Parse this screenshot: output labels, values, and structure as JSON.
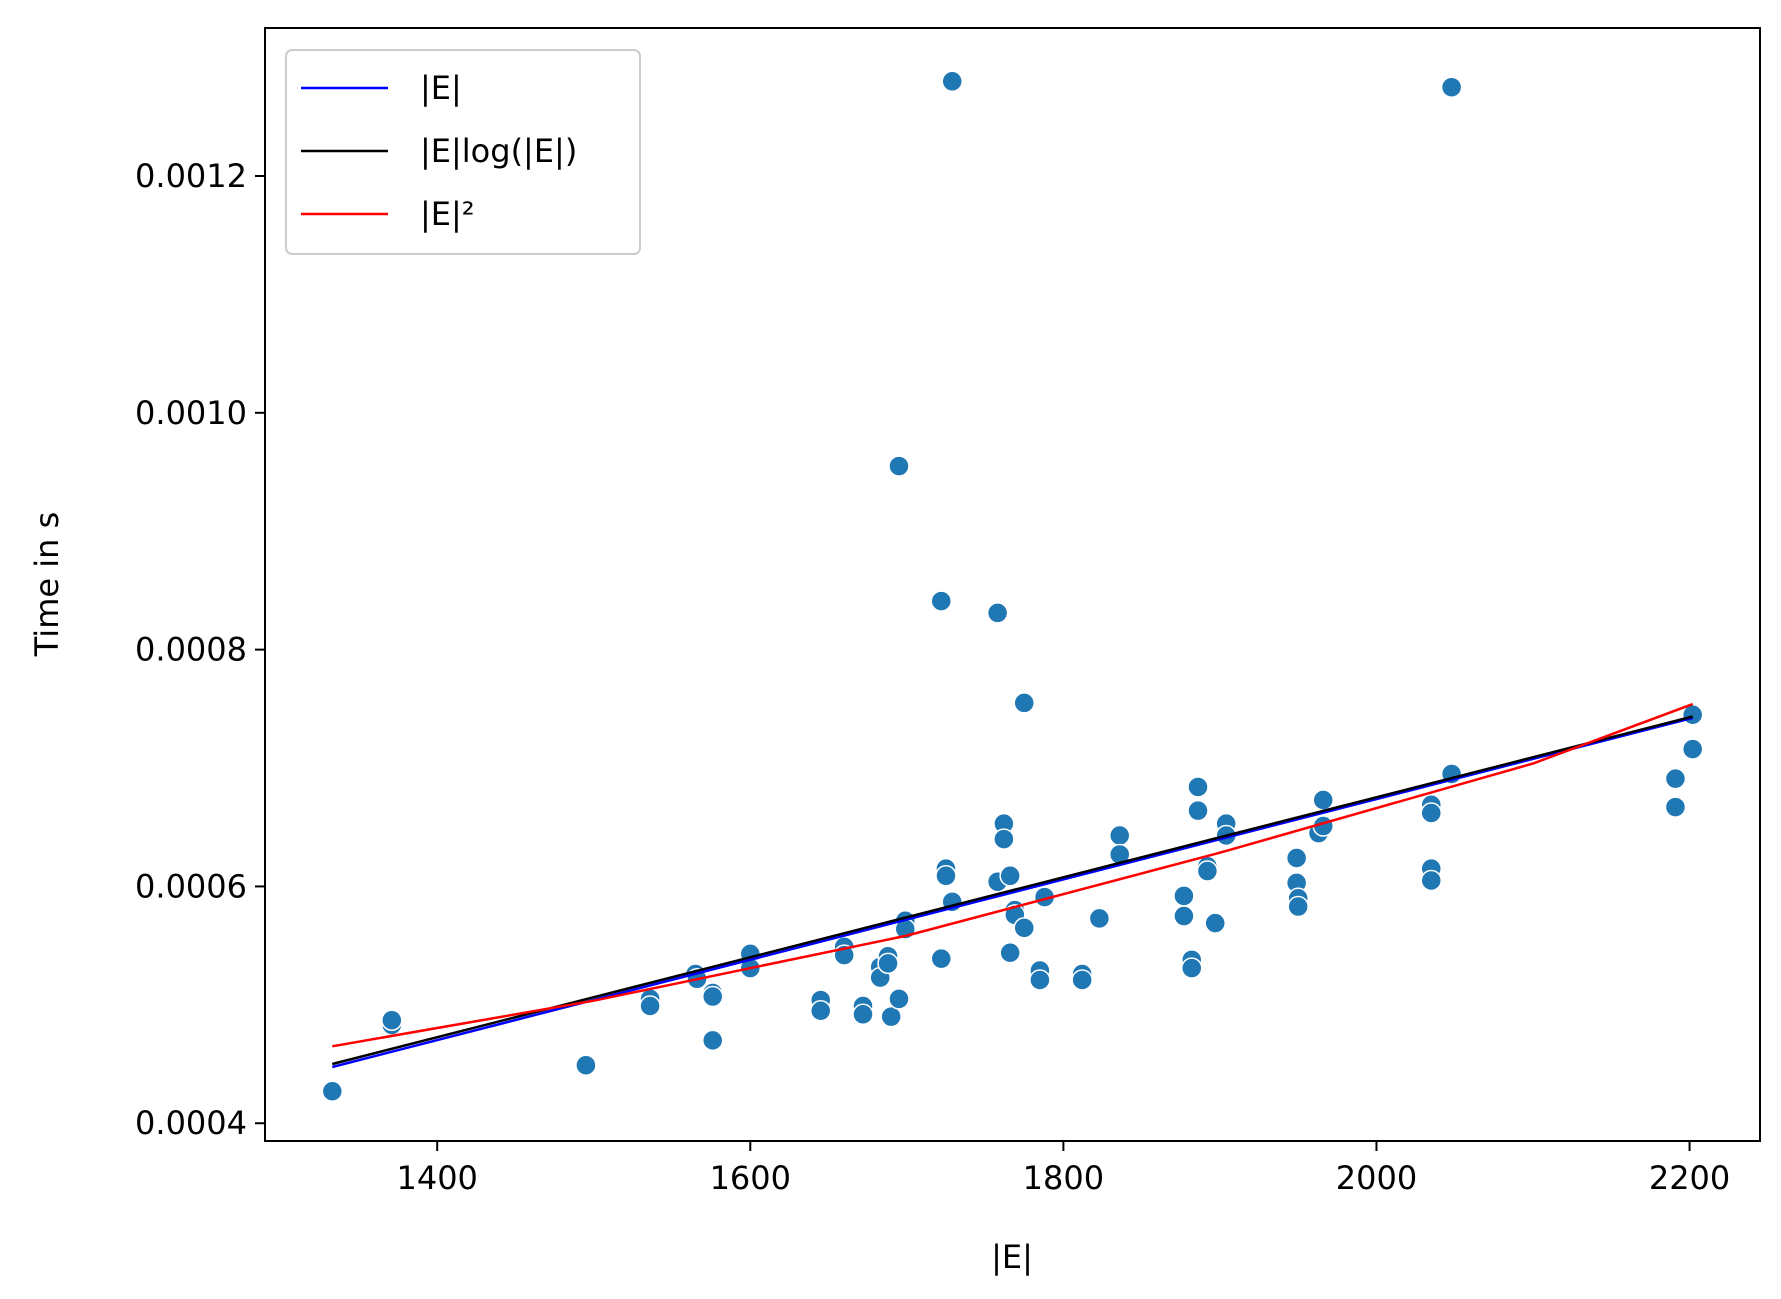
{
  "chart_data": {
    "type": "scatter",
    "title": "",
    "xlabel": "|E|",
    "ylabel": "Time in s",
    "xlim": [
      1290,
      2245
    ],
    "ylim": [
      0.000385,
      0.001325
    ],
    "xticks": [
      1400,
      1600,
      1800,
      2000,
      2200
    ],
    "xtick_labels": [
      "1400",
      "1600",
      "1800",
      "2000",
      "2200"
    ],
    "yticks": [
      0.0004,
      0.0006,
      0.0008,
      0.001,
      0.0012
    ],
    "ytick_labels": [
      "0.0004",
      "0.0006",
      "0.0008",
      "0.0010",
      "0.0012"
    ],
    "grid": false,
    "legend_position": "top-left",
    "points_color": "#1f77b4",
    "points": [
      [
        1333,
        0.000427
      ],
      [
        1371,
        0.000483
      ],
      [
        1371,
        0.000487
      ],
      [
        1495,
        0.000449
      ],
      [
        1536,
        0.000505
      ],
      [
        1536,
        0.000499
      ],
      [
        1565,
        0.000526
      ],
      [
        1566,
        0.000522
      ],
      [
        1576,
        0.00051
      ],
      [
        1576,
        0.000507
      ],
      [
        1576,
        0.00047
      ],
      [
        1600,
        0.000543
      ],
      [
        1600,
        0.000531
      ],
      [
        1645,
        0.000504
      ],
      [
        1645,
        0.000495
      ],
      [
        1660,
        0.000549
      ],
      [
        1660,
        0.000542
      ],
      [
        1672,
        0.000499
      ],
      [
        1672,
        0.000492
      ],
      [
        1683,
        0.000532
      ],
      [
        1683,
        0.000523
      ],
      [
        1688,
        0.000541
      ],
      [
        1688,
        0.000535
      ],
      [
        1690,
        0.00049
      ],
      [
        1695,
        0.000505
      ],
      [
        1695,
        0.000955
      ],
      [
        1699,
        0.000571
      ],
      [
        1699,
        0.000564
      ],
      [
        1722,
        0.000841
      ],
      [
        1722,
        0.000539
      ],
      [
        1725,
        0.000615
      ],
      [
        1725,
        0.000609
      ],
      [
        1729,
        0.000587
      ],
      [
        1729,
        0.00128
      ],
      [
        1758,
        0.000831
      ],
      [
        1758,
        0.000604
      ],
      [
        1762,
        0.000653
      ],
      [
        1762,
        0.00064
      ],
      [
        1766,
        0.000609
      ],
      [
        1766,
        0.000544
      ],
      [
        1769,
        0.00058
      ],
      [
        1769,
        0.000576
      ],
      [
        1775,
        0.000755
      ],
      [
        1775,
        0.000565
      ],
      [
        1785,
        0.000529
      ],
      [
        1785,
        0.000521
      ],
      [
        1788,
        0.000591
      ],
      [
        1812,
        0.000526
      ],
      [
        1812,
        0.000521
      ],
      [
        1823,
        0.000573
      ],
      [
        1836,
        0.000643
      ],
      [
        1836,
        0.000627
      ],
      [
        1877,
        0.000592
      ],
      [
        1877,
        0.000575
      ],
      [
        1882,
        0.000538
      ],
      [
        1882,
        0.000531
      ],
      [
        1886,
        0.000684
      ],
      [
        1886,
        0.000664
      ],
      [
        1892,
        0.000617
      ],
      [
        1892,
        0.000613
      ],
      [
        1897,
        0.000569
      ],
      [
        1904,
        0.000653
      ],
      [
        1904,
        0.000643
      ],
      [
        1949,
        0.000624
      ],
      [
        1949,
        0.000603
      ],
      [
        1950,
        0.00059
      ],
      [
        1950,
        0.000583
      ],
      [
        1963,
        0.000645
      ],
      [
        1966,
        0.000673
      ],
      [
        1966,
        0.000651
      ],
      [
        2035,
        0.000669
      ],
      [
        2035,
        0.000662
      ],
      [
        2035,
        0.000615
      ],
      [
        2035,
        0.000605
      ],
      [
        2048,
        0.000695
      ],
      [
        2048,
        0.001275
      ],
      [
        2191,
        0.000691
      ],
      [
        2191,
        0.000667
      ],
      [
        2202,
        0.000745
      ],
      [
        2202,
        0.000716
      ]
    ],
    "series": [
      {
        "name": "|E|",
        "color": "#0000ff",
        "x": [
          1333,
          2202
        ],
        "y": [
          0.0004475,
          0.0007423
        ]
      },
      {
        "name": "|E|log(|E|)",
        "color": "#000000",
        "x": [
          1333,
          2202
        ],
        "y": [
          0.00045,
          0.0007435
        ]
      },
      {
        "name": "|E|²",
        "color": "#ff0000",
        "x": [
          1333,
          1500,
          1700,
          1900,
          2100,
          2202
        ],
        "y": [
          0.000465,
          0.0005035,
          0.0005585,
          0.0006285,
          0.0007038,
          0.000754
        ]
      }
    ]
  }
}
